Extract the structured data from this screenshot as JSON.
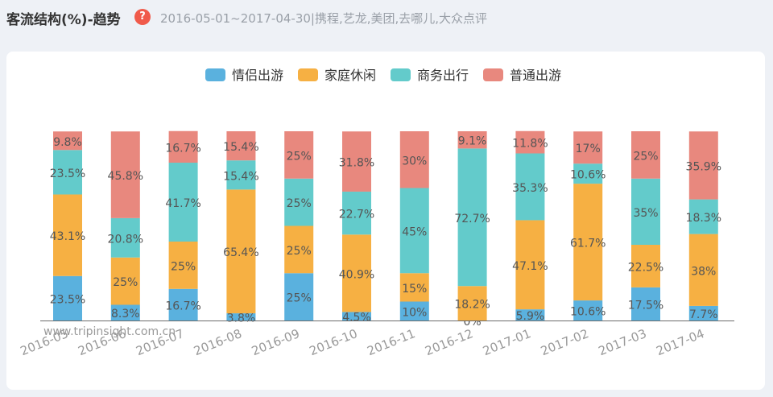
{
  "header": {
    "title": "客流结构(%)-趋势",
    "help_icon": "question-icon",
    "subtitle": "2016-05-01~2017-04-30|携程,艺龙,美团,去哪儿,大众点评"
  },
  "watermark": "www.tripinsight.com.cn",
  "chart_data": {
    "type": "bar",
    "stacked": true,
    "percent": true,
    "categories": [
      "2016-05",
      "2016-06",
      "2016-07",
      "2016-08",
      "2016-09",
      "2016-10",
      "2016-11",
      "2016-12",
      "2017-01",
      "2017-02",
      "2017-03",
      "2017-04"
    ],
    "series": [
      {
        "name": "情侣出游",
        "color": "#5ab1de",
        "values": [
          23.5,
          8.3,
          16.7,
          3.8,
          25,
          4.5,
          10,
          0,
          5.9,
          10.6,
          17.5,
          7.7
        ],
        "labels": [
          "23.5%",
          "8.3%",
          "16.7%",
          "3.8%",
          "25%",
          "4.5%",
          "10%",
          "0%",
          "5.9%",
          "10.6%",
          "17.5%",
          "7.7%"
        ]
      },
      {
        "name": "家庭休闲",
        "color": "#f6b043",
        "values": [
          43.1,
          25,
          25,
          65.4,
          25,
          40.9,
          15,
          18.2,
          47.1,
          61.7,
          22.5,
          38
        ],
        "labels": [
          "43.1%",
          "25%",
          "25%",
          "65.4%",
          "25%",
          "40.9%",
          "15%",
          "18.2%",
          "47.1%",
          "61.7%",
          "22.5%",
          "38%"
        ]
      },
      {
        "name": "商务出行",
        "color": "#63cbcb",
        "values": [
          23.5,
          20.8,
          41.7,
          15.4,
          25,
          22.7,
          45,
          72.7,
          35.3,
          10.6,
          35,
          18.3
        ],
        "labels": [
          "23.5%",
          "20.8%",
          "41.7%",
          "15.4%",
          "25%",
          "22.7%",
          "45%",
          "72.7%",
          "35.3%",
          "10.6%",
          "35%",
          "18.3%"
        ]
      },
      {
        "name": "普通出游",
        "color": "#e8887e",
        "values": [
          9.8,
          45.8,
          16.7,
          15.4,
          25,
          31.8,
          30,
          9.1,
          11.8,
          17,
          25,
          35.9
        ],
        "labels": [
          "9.8%",
          "45.8%",
          "16.7%",
          "15.4%",
          "25%",
          "31.8%",
          "30%",
          "9.1%",
          "11.8%",
          "17%",
          "25%",
          "35.9%"
        ]
      }
    ],
    "legend_position": "top-center",
    "ylim": [
      0,
      100
    ],
    "grid": false
  }
}
